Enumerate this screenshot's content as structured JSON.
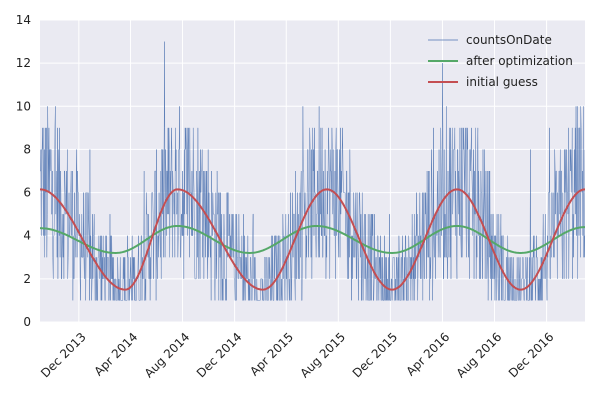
{
  "chart_data": {
    "type": "line",
    "x_axis_type": "date",
    "xlim": [
      "2013-09-01",
      "2017-03-01"
    ],
    "ylim": [
      0,
      14
    ],
    "yticks": [
      0,
      2,
      4,
      6,
      8,
      10,
      12,
      14
    ],
    "xticks": [
      {
        "date": "2013-12-01",
        "label": "Dec 2013"
      },
      {
        "date": "2014-04-01",
        "label": "Apr 2014"
      },
      {
        "date": "2014-08-01",
        "label": "Aug 2014"
      },
      {
        "date": "2014-12-01",
        "label": "Dec 2014"
      },
      {
        "date": "2015-04-01",
        "label": "Apr 2015"
      },
      {
        "date": "2015-08-01",
        "label": "Aug 2015"
      },
      {
        "date": "2015-12-01",
        "label": "Dec 2015"
      },
      {
        "date": "2016-04-01",
        "label": "Apr 2016"
      },
      {
        "date": "2016-08-01",
        "label": "Aug 2016"
      },
      {
        "date": "2016-12-01",
        "label": "Dec 2016"
      }
    ],
    "xtick_rotation_deg": 45,
    "grid": true,
    "legend_position": "top-right",
    "background_color": "#eaeaf2",
    "title": "",
    "xlabel": "",
    "ylabel": "",
    "series": [
      {
        "name": "countsOnDate",
        "color": "#4c72b0",
        "style": "thin-noisy-daily",
        "x_start": "2013-09-01",
        "x_end": "2017-03-01",
        "frequency": "daily",
        "mean_minimum": 1.5,
        "mean_maximum": 6.2,
        "mean_peak_dates": [
          "2014-07-20",
          "2015-07-05",
          "2016-05-05",
          "2017-03-01"
        ],
        "mean_trough_dates": [
          "2014-03-20",
          "2015-02-05",
          "2015-12-05",
          "2016-10-01"
        ],
        "value_min": 1,
        "value_max": 13
      },
      {
        "name": "after optimization",
        "color": "#55a868",
        "style": "smooth-sinusoid",
        "x_start": "2013-09-01",
        "x_end": "2017-03-01",
        "points": [
          [
            "2013-09-01",
            4.35
          ],
          [
            "2014-02-25",
            3.2
          ],
          [
            "2014-07-20",
            4.45
          ],
          [
            "2015-01-05",
            3.2
          ],
          [
            "2015-06-10",
            4.45
          ],
          [
            "2015-12-05",
            3.2
          ],
          [
            "2016-05-05",
            4.45
          ],
          [
            "2016-10-01",
            3.2
          ],
          [
            "2017-03-01",
            4.4
          ]
        ]
      },
      {
        "name": "initial guess",
        "color": "#c44e52",
        "style": "smooth-sinusoid",
        "x_start": "2013-09-01",
        "x_end": "2017-03-01",
        "points": [
          [
            "2013-09-01",
            6.15
          ],
          [
            "2014-03-20",
            1.5
          ],
          [
            "2014-07-20",
            6.15
          ],
          [
            "2015-02-05",
            1.5
          ],
          [
            "2015-07-05",
            6.15
          ],
          [
            "2015-12-05",
            1.5
          ],
          [
            "2016-05-05",
            6.15
          ],
          [
            "2016-10-01",
            1.5
          ],
          [
            "2017-03-01",
            6.15
          ]
        ]
      }
    ]
  }
}
